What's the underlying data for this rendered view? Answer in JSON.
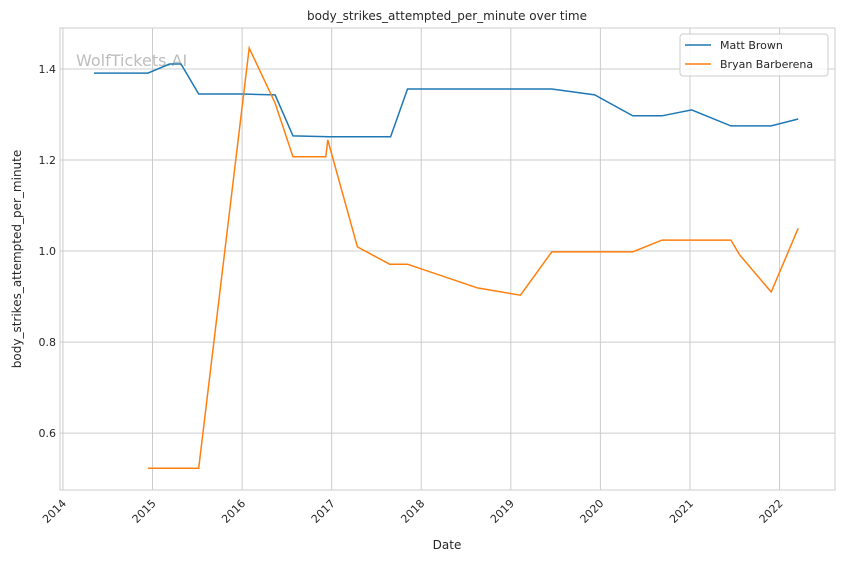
{
  "chart_data": {
    "type": "line",
    "title": "body_strikes_attempted_per_minute over time",
    "xlabel": "Date",
    "ylabel": "body_strikes_attempted_per_minute",
    "xlim": [
      "2013-12-20",
      "2022-08-15"
    ],
    "ylim": [
      0.475,
      1.49
    ],
    "x_ticks": [
      "2014",
      "2015",
      "2016",
      "2017",
      "2018",
      "2019",
      "2020",
      "2021",
      "2022"
    ],
    "y_ticks": [
      "0.6",
      "0.8",
      "1.0",
      "1.2",
      "1.4"
    ],
    "grid": true,
    "legend_placement": "top-right",
    "watermark": "WolfTickets.AI",
    "series": [
      {
        "name": "Matt Brown",
        "color": "#1f77b4",
        "points": [
          [
            "2014-05-08",
            1.391
          ],
          [
            "2014-12-13",
            1.391
          ],
          [
            "2015-03-11",
            1.411
          ],
          [
            "2015-04-27",
            1.411
          ],
          [
            "2015-07-08",
            1.345
          ],
          [
            "2016-01-01",
            1.345
          ],
          [
            "2016-05-15",
            1.343
          ],
          [
            "2016-07-27",
            1.253
          ],
          [
            "2016-12-23",
            1.251
          ],
          [
            "2017-08-29",
            1.251
          ],
          [
            "2017-11-06",
            1.356
          ],
          [
            "2019-06-17",
            1.356
          ],
          [
            "2019-12-09",
            1.343
          ],
          [
            "2020-05-12",
            1.297
          ],
          [
            "2020-09-09",
            1.297
          ],
          [
            "2021-01-08",
            1.31
          ],
          [
            "2021-06-17",
            1.275
          ],
          [
            "2021-11-28",
            1.275
          ],
          [
            "2022-03-18",
            1.29
          ]
        ]
      },
      {
        "name": "Bryan Barberena",
        "color": "#ff7f0e",
        "points": [
          [
            "2014-12-13",
            0.523
          ],
          [
            "2015-07-08",
            0.523
          ],
          [
            "2016-01-30",
            1.446
          ],
          [
            "2016-05-15",
            1.325
          ],
          [
            "2016-07-27",
            1.207
          ],
          [
            "2016-12-08",
            1.207
          ],
          [
            "2016-12-16",
            1.244
          ],
          [
            "2017-04-16",
            1.009
          ],
          [
            "2017-08-25",
            0.971
          ],
          [
            "2017-11-06",
            0.971
          ],
          [
            "2018-08-18",
            0.919
          ],
          [
            "2019-02-09",
            0.903
          ],
          [
            "2019-06-17",
            0.998
          ],
          [
            "2020-05-12",
            0.998
          ],
          [
            "2020-09-09",
            1.024
          ],
          [
            "2021-06-17",
            1.024
          ],
          [
            "2021-07-23",
            0.991
          ],
          [
            "2021-11-28",
            0.91
          ],
          [
            "2022-03-18",
            1.05
          ]
        ]
      }
    ]
  }
}
